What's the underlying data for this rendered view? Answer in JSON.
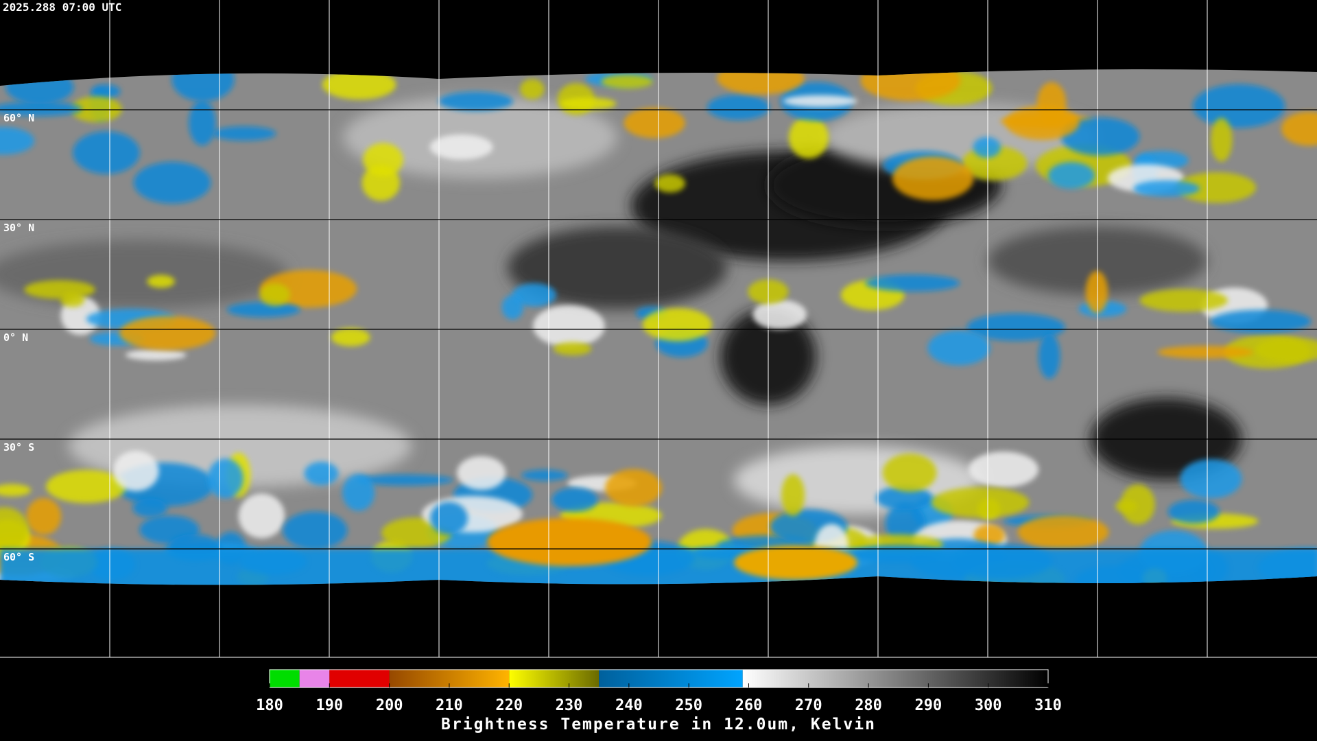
{
  "timestamp": "2025.288 07:00 UTC",
  "map": {
    "lat_lines": [
      {
        "value": 60,
        "label": "60° N"
      },
      {
        "value": 30,
        "label": "30° N"
      },
      {
        "value": 0,
        "label": "0° N"
      },
      {
        "value": -30,
        "label": "30° S"
      },
      {
        "value": -60,
        "label": "60° S"
      }
    ],
    "lat_range": [
      90,
      -90
    ]
  },
  "colorbar": {
    "label": "Brightness Temperature in 12.0um, Kelvin",
    "range": [
      180,
      310
    ],
    "ticks": [
      180,
      190,
      200,
      210,
      220,
      230,
      240,
      250,
      260,
      270,
      280,
      290,
      300,
      310
    ],
    "segments": [
      {
        "from": 180,
        "to": 185,
        "color_from": "#00dd00",
        "color_to": "#00dd00"
      },
      {
        "from": 185,
        "to": 190,
        "color_from": "#e884e8",
        "color_to": "#e884e8"
      },
      {
        "from": 190,
        "to": 200,
        "color_from": "#e00000",
        "color_to": "#e00000"
      },
      {
        "from": 200,
        "to": 220,
        "color_from": "#964800",
        "color_to": "#ffb400"
      },
      {
        "from": 220,
        "to": 235,
        "color_from": "#ffff00",
        "color_to": "#6a6a00"
      },
      {
        "from": 235,
        "to": 259,
        "color_from": "#00609c",
        "color_to": "#00a4ff"
      },
      {
        "from": 259,
        "to": 310,
        "color_from": "#ffffff",
        "color_to": "#000000"
      }
    ]
  }
}
